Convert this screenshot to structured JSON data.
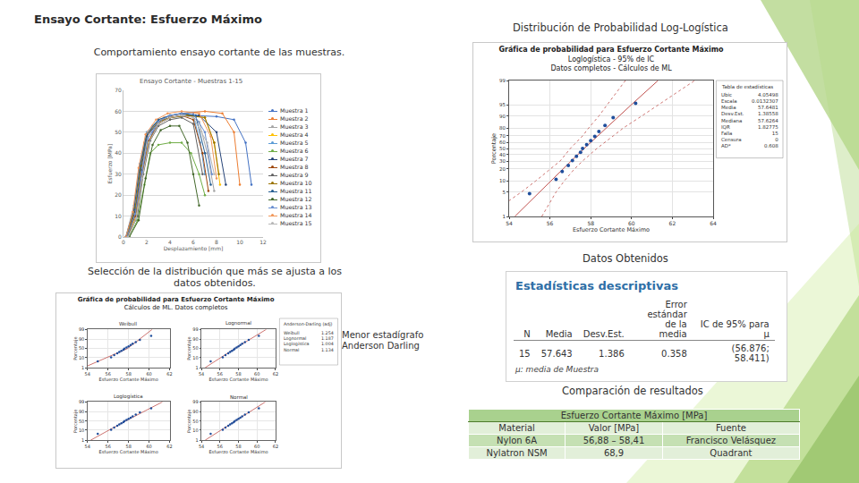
{
  "slide": {
    "title": "Ensayo Cortante: Esfuerzo Máximo",
    "heading_right": "Distribución de Probabilidad Log-Logística",
    "caption_curves": "Comportamiento ensayo cortante de las muestras.",
    "caption_selection": "Selección de la distribución que más se ajusta a los datos obtenidos.",
    "note_anderson": "Menor estadígrafo Anderson Darling",
    "caption_data": "Datos Obtenidos",
    "caption_comparison": "Comparación de resultados"
  },
  "chart_data": [
    {
      "type": "line",
      "title": "Ensayo Cortante - Muestras 1-15",
      "x_label": "Desplazamiento [mm]",
      "y_label": "Esfuerzo [MPa]",
      "xlim": [
        0,
        12
      ],
      "xticks": [
        0,
        2,
        4,
        6,
        8,
        10,
        12
      ],
      "ylim": [
        0,
        70
      ],
      "yticks": [
        0,
        10,
        20,
        30,
        40,
        50,
        60,
        70
      ],
      "grid": true,
      "marker": "circle",
      "legend": "right",
      "series": [
        {
          "name": "Muestra 1",
          "color": "#4472C4",
          "x": [
            0.3,
            1,
            1.5,
            2,
            2.5,
            3,
            4,
            6,
            8,
            9.5,
            10.5,
            11
          ],
          "values": [
            0,
            8,
            25,
            42,
            50,
            54,
            57,
            58,
            57.5,
            56,
            45,
            25
          ]
        },
        {
          "name": "Muestra 2",
          "color": "#ED7D31",
          "x": [
            0.2,
            0.8,
            1.3,
            1.8,
            2.5,
            3.5,
            5,
            7,
            8.5,
            9.5,
            10
          ],
          "values": [
            0,
            10,
            30,
            45,
            53,
            57,
            59,
            60,
            59,
            50,
            25
          ]
        },
        {
          "name": "Muestra 3",
          "color": "#A5A5A5",
          "x": [
            0.3,
            1,
            1.5,
            2,
            3,
            4,
            5.5,
            6.5,
            7.2,
            7.8
          ],
          "values": [
            0,
            12,
            30,
            46,
            55,
            58,
            59,
            55,
            40,
            22
          ]
        },
        {
          "name": "Muestra 4",
          "color": "#FFC000",
          "x": [
            0.4,
            1.1,
            1.6,
            2.1,
            3,
            4,
            5.5,
            7,
            7.8,
            8.3
          ],
          "values": [
            0,
            10,
            28,
            45,
            54,
            57,
            58,
            57,
            45,
            25
          ]
        },
        {
          "name": "Muestra 5",
          "color": "#5B9BD5",
          "x": [
            0.2,
            0.9,
            1.4,
            2,
            3,
            4,
            5,
            6,
            6.6,
            7
          ],
          "values": [
            0,
            15,
            35,
            50,
            56,
            58,
            59,
            58,
            45,
            30
          ]
        },
        {
          "name": "Muestra 6",
          "color": "#70AD47",
          "x": [
            0.5,
            1.2,
            1.8,
            2.3,
            3,
            4,
            5,
            5.8,
            6.5,
            7
          ],
          "values": [
            0,
            8,
            25,
            40,
            44,
            45,
            45,
            40,
            30,
            20
          ]
        },
        {
          "name": "Muestra 7",
          "color": "#264478",
          "x": [
            0.3,
            1,
            1.5,
            2,
            3,
            4,
            5,
            6.5,
            8,
            8.8
          ],
          "values": [
            0,
            12,
            32,
            48,
            55,
            57,
            58,
            58,
            50,
            25
          ]
        },
        {
          "name": "Muestra 8",
          "color": "#9E480E",
          "x": [
            0.3,
            1,
            1.6,
            2.2,
            3,
            4,
            5,
            6,
            6.8,
            7.3
          ],
          "values": [
            0,
            10,
            30,
            46,
            54,
            57,
            58,
            56,
            40,
            22
          ]
        },
        {
          "name": "Muestra 9",
          "color": "#636363",
          "x": [
            0.4,
            1.2,
            1.7,
            2.3,
            3,
            4,
            5,
            6,
            6.8
          ],
          "values": [
            0,
            10,
            30,
            46,
            53,
            56,
            57,
            54,
            30
          ]
        },
        {
          "name": "Muestra 10",
          "color": "#997300",
          "x": [
            0.3,
            1,
            1.5,
            2,
            3,
            4,
            5.5,
            7,
            7.8,
            8.2
          ],
          "values": [
            0,
            14,
            34,
            49,
            55,
            57,
            58,
            57,
            45,
            30
          ]
        },
        {
          "name": "Muestra 11",
          "color": "#255E91",
          "x": [
            0.2,
            0.9,
            1.4,
            2,
            3,
            4,
            5,
            6.2,
            7,
            7.5
          ],
          "values": [
            0,
            13,
            33,
            49,
            56,
            58,
            59,
            58,
            40,
            25
          ]
        },
        {
          "name": "Muestra 12",
          "color": "#43682B",
          "x": [
            0.5,
            1.3,
            1.9,
            2.5,
            3.2,
            4,
            4.8,
            5.5,
            6,
            6.5
          ],
          "values": [
            0,
            8,
            28,
            44,
            51,
            53,
            53,
            45,
            30,
            15
          ]
        },
        {
          "name": "Muestra 13",
          "color": "#698ED0",
          "x": [
            0.3,
            1,
            1.6,
            2.1,
            3,
            4,
            5,
            6,
            7,
            7.6
          ],
          "values": [
            0,
            11,
            31,
            47,
            55,
            58,
            59,
            59,
            50,
            30
          ]
        },
        {
          "name": "Muestra 14",
          "color": "#F1975A",
          "x": [
            0.2,
            0.8,
            1.3,
            1.9,
            2.8,
            3.8,
            5,
            6.5,
            7.5,
            8
          ],
          "values": [
            0,
            12,
            33,
            49,
            56,
            59,
            60,
            59,
            48,
            28
          ]
        },
        {
          "name": "Muestra 15",
          "color": "#B7B7B7",
          "x": [
            0.4,
            1.1,
            1.6,
            2.2,
            3,
            4,
            5,
            6,
            7.2,
            7.8
          ],
          "values": [
            0,
            9,
            28,
            45,
            54,
            57,
            58,
            57,
            45,
            30
          ]
        }
      ]
    },
    {
      "type": "probability",
      "title": "Gráfica de probabilidad para Esfuerzo Cortante Máximo",
      "subtitle": [
        "Loglogística - 95% de IC",
        "Datos completos - Cálculos de ML"
      ],
      "x_label": "Esfuerzo Cortante Máximo",
      "y_label": "Porcentaje",
      "xlim": [
        54,
        64
      ],
      "xticks": [
        54,
        56,
        58,
        60,
        62,
        64
      ],
      "ylim": [
        1,
        99
      ],
      "yticks": [
        1,
        5,
        10,
        20,
        30,
        40,
        50,
        60,
        70,
        80,
        90,
        95,
        99
      ],
      "grid": true,
      "points": {
        "x": [
          55.0,
          56.3,
          56.6,
          56.9,
          57.1,
          57.3,
          57.5,
          57.6,
          57.8,
          58.0,
          58.2,
          58.4,
          58.7,
          59.1,
          60.2
        ],
        "values": [
          4.5,
          11.0,
          17.5,
          24.0,
          30.5,
          37.0,
          43.5,
          50.0,
          56.5,
          63.0,
          69.5,
          76.0,
          82.5,
          89.0,
          95.5
        ]
      },
      "fit": {
        "percent": [
          1,
          5,
          10,
          20,
          30,
          50,
          70,
          80,
          90,
          95,
          99
        ],
        "x": [
          54.28,
          55.48,
          56.03,
          56.63,
          57.04,
          57.68,
          58.33,
          58.75,
          59.39,
          59.98,
          61.3
        ],
        "ci_lower": [
          52.9,
          54.6,
          55.3,
          56.0,
          56.5,
          57.0,
          57.6,
          57.9,
          58.4,
          58.8,
          59.7
        ],
        "ci_upper": [
          55.6,
          56.3,
          56.7,
          57.2,
          57.6,
          58.3,
          59.1,
          59.6,
          60.5,
          61.3,
          63.1
        ]
      },
      "statistics": {
        "title": "Tabla de estadísticas",
        "rows": [
          [
            "Ubic",
            "4.05498"
          ],
          [
            "Escala",
            "0.0132307"
          ],
          [
            "Media",
            "57.6481"
          ],
          [
            "Desv.Est.",
            "1.38558"
          ],
          [
            "Mediana",
            "57.6264"
          ],
          [
            "IQR",
            "1.82775"
          ],
          [
            "Falla",
            "15"
          ],
          [
            "Censura",
            "0"
          ],
          [
            "AD*",
            "0.608"
          ]
        ]
      }
    },
    {
      "type": "probability_grid",
      "title": "Gráfica de probabilidad para Esfuerzo Cortante Máximo",
      "subtitle": "Cálculos de ML. Datos completos",
      "x_label": "Esfuerzo Cortante Máximo",
      "y_label": "Porcentaje",
      "xlim": [
        54,
        62
      ],
      "xticks": [
        54,
        56,
        58,
        60,
        62
      ],
      "ylim": [
        1,
        99
      ],
      "yticks": [
        1,
        10,
        50,
        90,
        99
      ],
      "grid": true,
      "points": {
        "x": [
          55.0,
          56.3,
          56.6,
          56.9,
          57.1,
          57.3,
          57.5,
          57.6,
          57.8,
          58.0,
          58.2,
          58.4,
          58.7,
          59.1,
          60.2
        ],
        "values": [
          4.5,
          11.0,
          17.5,
          24.0,
          30.5,
          37.0,
          43.5,
          50.0,
          56.5,
          63.0,
          69.5,
          76.0,
          82.5,
          89.0,
          95.5
        ]
      },
      "panels": [
        {
          "name": "Weibull",
          "fit": {
            "percent": [
              1,
              50,
              99
            ],
            "x": [
              53.6,
              57.9,
              60.3
            ]
          }
        },
        {
          "name": "Lognormal",
          "fit": {
            "percent": [
              1,
              50,
              99
            ],
            "x": [
              54.4,
              57.6,
              61.0
            ]
          }
        },
        {
          "name": "Loglogística",
          "fit": {
            "percent": [
              1,
              50,
              99
            ],
            "x": [
              54.3,
              57.7,
              61.3
            ]
          }
        },
        {
          "name": "Normal",
          "fit": {
            "percent": [
              1,
              50,
              99
            ],
            "x": [
              54.4,
              57.6,
              60.9
            ]
          }
        }
      ],
      "statistics": {
        "title": "Anderson-Darling (adj)",
        "rows": [
          [
            "Weibull",
            "1.254"
          ],
          [
            "Lognormal",
            "1.187"
          ],
          [
            "Loglogística",
            "1.004"
          ],
          [
            "Normal",
            "1.134"
          ]
        ]
      }
    }
  ],
  "descriptive_stats": {
    "title": "Estadísticas descriptivas",
    "columns": [
      "N",
      "Media",
      "Desv.Est.",
      "Error estándar de la media",
      "IC de 95% para μ"
    ],
    "row": [
      "15",
      "57.643",
      "1.386",
      "0.358",
      "(56.876; 58.411)"
    ],
    "note": "μ: media de Muestra"
  },
  "comparison": {
    "title": "Esfuerzo Cortante Máximo [MPa]",
    "columns": [
      "Material",
      "Valor [MPa]",
      "Fuente"
    ],
    "rows": [
      [
        "Nylon 6A",
        "56,88 – 58,41",
        "Francisco Velásquez"
      ],
      [
        "Nylatron NSM",
        "68,9",
        "Quadrant"
      ]
    ]
  }
}
